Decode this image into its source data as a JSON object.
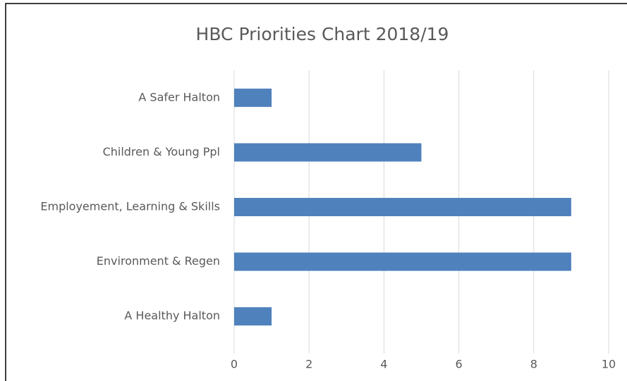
{
  "chart_data": {
    "type": "bar",
    "orientation": "horizontal",
    "title": "HBC Priorities Chart 2018/19",
    "categories": [
      "A Safer Halton",
      "Children & Young Ppl",
      "Employement, Learning & Skills",
      "Environment & Regen",
      "A Healthy Halton"
    ],
    "values": [
      1,
      5,
      9,
      9,
      1
    ],
    "color": "#4f81bd",
    "xlim": [
      0,
      10
    ],
    "xticks": [
      0,
      2,
      4,
      6,
      8,
      10
    ],
    "grid": true
  }
}
